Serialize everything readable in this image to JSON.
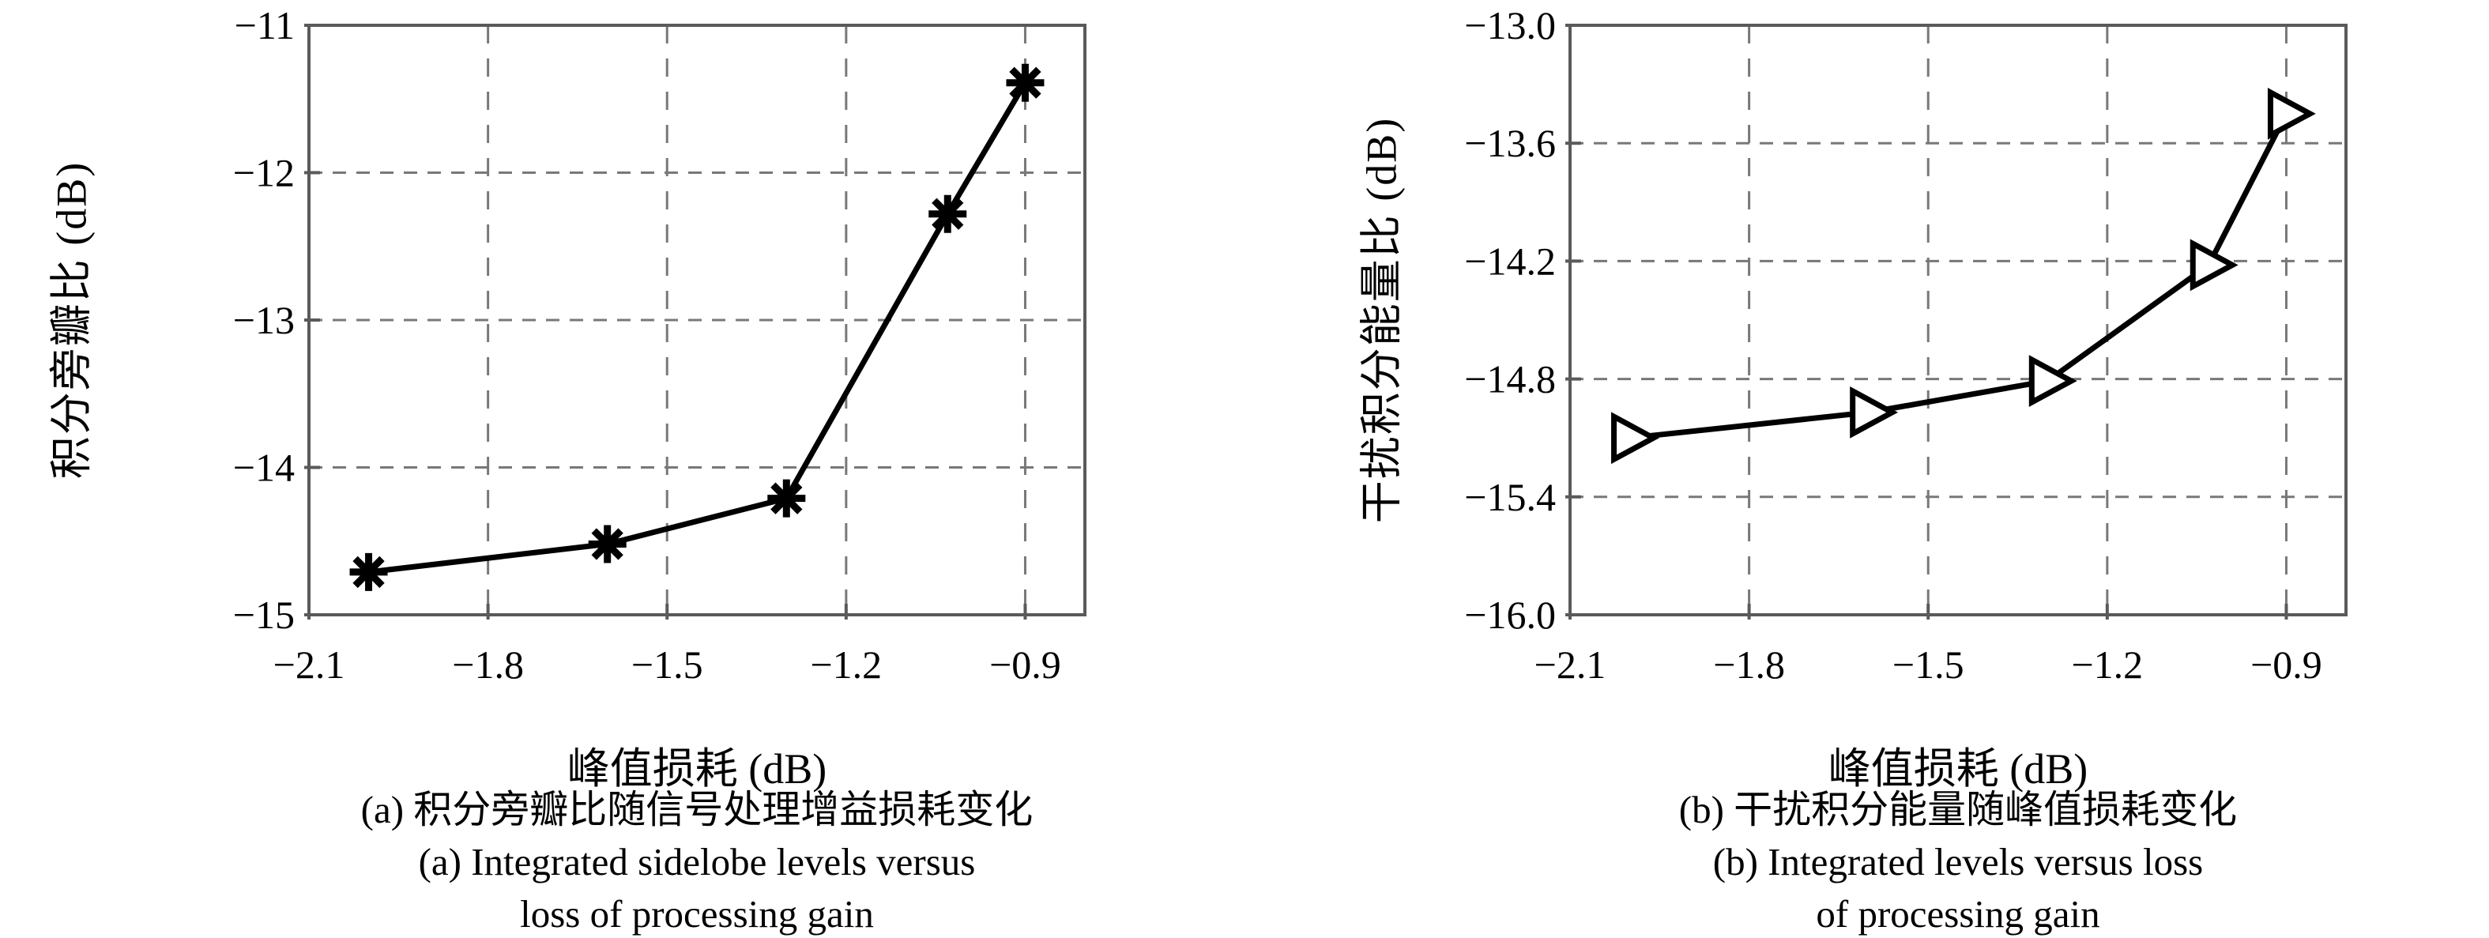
{
  "figure": {
    "background_color": "#ffffff",
    "text_color": "#000000"
  },
  "colors": {
    "line": "#000000",
    "grid": "#787878",
    "frame": "#5a5a5a",
    "marker_face": "#ffffff",
    "text": "#000000"
  },
  "chart_data": [
    {
      "type": "line",
      "marker": "asterisk",
      "xlabel": "峰值损耗 (dB)",
      "ylabel": "积分旁瓣比 (dB)",
      "xlim": [
        -2.1,
        -0.8
      ],
      "ylim": [
        -15,
        -11
      ],
      "grid": true,
      "x": [
        -2.0,
        -1.6,
        -1.3,
        -1.03,
        -0.9
      ],
      "y": [
        -14.71,
        -14.52,
        -14.21,
        -12.28,
        -11.39
      ],
      "xticks": {
        "values": [
          -2.1,
          -1.8,
          -1.5,
          -1.2,
          -0.9
        ],
        "labels": [
          "−2.1",
          "−1.8",
          "−1.5",
          "−1.2",
          "−0.9"
        ]
      },
      "yticks": {
        "values": [
          -11,
          -12,
          -13,
          -14,
          -15
        ],
        "labels": [
          "−11",
          "−12",
          "−13",
          "−14",
          "−15"
        ]
      },
      "caption_lines": [
        "(a) 积分旁瓣比随信号处理增益损耗变化",
        "(a) Integrated sidelobe levels versus",
        "loss of processing gain"
      ]
    },
    {
      "type": "line",
      "marker": "triangle-right",
      "xlabel": "峰值损耗 (dB)",
      "ylabel": "干扰积分能量比 (dB)",
      "xlim": [
        -2.1,
        -0.8
      ],
      "ylim": [
        -16.0,
        -13.0
      ],
      "grid": true,
      "x": [
        -2.0,
        -1.6,
        -1.3,
        -1.03,
        -0.9
      ],
      "y": [
        -15.1,
        -14.97,
        -14.81,
        -14.22,
        -13.45
      ],
      "xticks": {
        "values": [
          -2.1,
          -1.8,
          -1.5,
          -1.2,
          -0.9
        ],
        "labels": [
          "−2.1",
          "−1.8",
          "−1.5",
          "−1.2",
          "−0.9"
        ]
      },
      "yticks": {
        "values": [
          -13.0,
          -13.6,
          -14.2,
          -14.8,
          -15.4,
          -16.0
        ],
        "labels": [
          "−13.0",
          "−13.6",
          "−14.2",
          "−14.8",
          "−15.4",
          "−16.0"
        ]
      },
      "caption_lines": [
        "(b) 干扰积分能量随峰值损耗变化",
        "(b) Integrated levels versus loss",
        "of processing gain"
      ]
    }
  ]
}
